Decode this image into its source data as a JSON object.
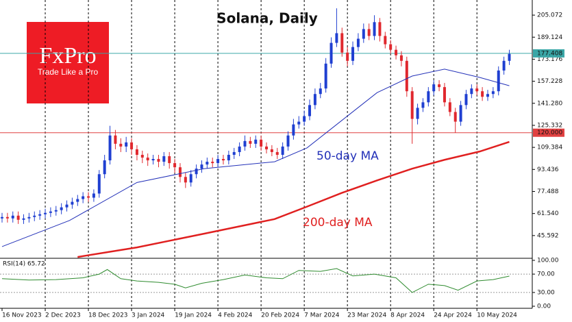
{
  "logo": {
    "name": "FxPro",
    "tagline": "Trade Like a Pro"
  },
  "chart_data": [
    {
      "type": "candlestick",
      "title": "Solana, Daily",
      "x": [
        0,
        2,
        4,
        6,
        8,
        10,
        12,
        14,
        16,
        18,
        20,
        22,
        24,
        26,
        28,
        30,
        32,
        34,
        36,
        38,
        40,
        42,
        44,
        46,
        48,
        50,
        52,
        54,
        56,
        58,
        60,
        62,
        64,
        66,
        68,
        70,
        72,
        74,
        76,
        78,
        80,
        82,
        84,
        86,
        88,
        90,
        92,
        94,
        96,
        98,
        100,
        102,
        104,
        106,
        108,
        110,
        112,
        114,
        116,
        118,
        120,
        122,
        124,
        126,
        128,
        130,
        132,
        134,
        136,
        138,
        140,
        142,
        144,
        146,
        148,
        150,
        152,
        154,
        156,
        158,
        160,
        162,
        164,
        166,
        168,
        170,
        172,
        174,
        176,
        178,
        180,
        182,
        184,
        186,
        188
      ],
      "open": [
        58,
        59,
        58,
        60,
        57,
        58,
        59,
        60,
        61,
        62,
        63,
        64,
        66,
        68,
        70,
        72,
        74,
        73,
        76,
        90,
        100,
        118,
        112,
        110,
        113,
        108,
        104,
        102,
        100,
        101,
        99,
        103,
        98,
        95,
        88,
        84,
        90,
        94,
        97,
        99,
        98,
        101,
        100,
        104,
        106,
        110,
        114,
        112,
        115,
        110,
        108,
        106,
        104,
        110,
        118,
        126,
        128,
        132,
        140,
        148,
        152,
        170,
        185,
        192,
        178,
        172,
        182,
        188,
        195,
        190,
        200,
        190,
        184,
        180,
        176,
        172,
        150,
        130,
        138,
        142,
        150,
        155,
        153,
        142,
        135,
        128,
        140,
        148,
        152,
        150,
        146,
        148,
        150,
        165,
        172
      ],
      "high": [
        62,
        62,
        63,
        63,
        61,
        62,
        63,
        64,
        65,
        66,
        67,
        69,
        71,
        73,
        75,
        77,
        77,
        79,
        93,
        104,
        125,
        122,
        116,
        117,
        116,
        111,
        107,
        105,
        104,
        104,
        106,
        106,
        101,
        98,
        91,
        93,
        97,
        100,
        102,
        102,
        104,
        104,
        107,
        109,
        113,
        118,
        117,
        118,
        118,
        113,
        111,
        109,
        113,
        121,
        130,
        132,
        136,
        144,
        152,
        156,
        174,
        189,
        210,
        196,
        182,
        186,
        192,
        199,
        199,
        205,
        203,
        193,
        187,
        183,
        179,
        175,
        153,
        141,
        145,
        153,
        158,
        158,
        156,
        145,
        138,
        143,
        151,
        155,
        155,
        153,
        151,
        153,
        168,
        175,
        180
      ],
      "low": [
        55,
        55,
        55,
        54,
        54,
        55,
        56,
        57,
        58,
        59,
        60,
        61,
        63,
        65,
        67,
        69,
        70,
        70,
        73,
        87,
        97,
        108,
        106,
        106,
        104,
        100,
        98,
        96,
        97,
        95,
        96,
        94,
        91,
        84,
        80,
        81,
        87,
        91,
        94,
        95,
        95,
        97,
        97,
        101,
        103,
        107,
        109,
        109,
        107,
        105,
        103,
        101,
        101,
        107,
        115,
        123,
        125,
        129,
        137,
        145,
        149,
        167,
        182,
        175,
        168,
        169,
        179,
        185,
        187,
        187,
        186,
        181,
        177,
        173,
        168,
        146,
        112,
        126,
        135,
        139,
        147,
        150,
        139,
        132,
        120,
        125,
        137,
        145,
        147,
        143,
        143,
        145,
        147,
        162,
        169
      ],
      "close": [
        59,
        58,
        60,
        57,
        58,
        59,
        60,
        61,
        62,
        63,
        64,
        66,
        68,
        70,
        72,
        74,
        73,
        76,
        90,
        100,
        118,
        112,
        110,
        113,
        108,
        104,
        102,
        100,
        101,
        99,
        103,
        98,
        95,
        88,
        84,
        90,
        94,
        97,
        99,
        98,
        101,
        100,
        104,
        106,
        110,
        114,
        112,
        115,
        110,
        108,
        106,
        104,
        110,
        118,
        126,
        128,
        132,
        140,
        148,
        152,
        170,
        185,
        192,
        178,
        172,
        182,
        188,
        195,
        190,
        200,
        190,
        184,
        180,
        176,
        172,
        150,
        130,
        138,
        142,
        150,
        155,
        153,
        142,
        135,
        128,
        140,
        148,
        152,
        150,
        146,
        148,
        150,
        165,
        172,
        177
      ],
      "up_color": "#1f3fd1",
      "down_color": "#e0282e",
      "series": [
        {
          "name": "50-day MA",
          "color": "#2230b8",
          "x": [
            0,
            25,
            50,
            75,
            101,
            113,
            126,
            139,
            152,
            164,
            177,
            188
          ],
          "values": [
            37.6,
            56.5,
            84,
            94,
            99,
            109,
            129,
            149,
            161,
            166,
            160,
            154
          ]
        },
        {
          "name": "200-day MA",
          "color": "#e02020",
          "x": [
            28,
            50,
            75,
            101,
            113,
            126,
            139,
            152,
            164,
            177,
            188
          ],
          "values": [
            30.1,
            37,
            47,
            57.5,
            66.5,
            76.5,
            85.5,
            94,
            100.4,
            106.4,
            113.4
          ]
        }
      ],
      "price_line": 177.408,
      "level_line": {
        "value": 120,
        "label": "120.000"
      },
      "xlim": [
        0,
        196
      ],
      "xticks": [
        {
          "value": 0,
          "label": "16 Nov 2023"
        },
        {
          "value": 16,
          "label": "2 Dec 2023"
        },
        {
          "value": 32,
          "label": "18 Dec 2023"
        },
        {
          "value": 48,
          "label": "3 Jan 2024"
        },
        {
          "value": 64,
          "label": "19 Jan 2024"
        },
        {
          "value": 80,
          "label": "4 Feb 2024"
        },
        {
          "value": 96,
          "label": "20 Feb 2024"
        },
        {
          "value": 112,
          "label": "7 Mar 2024"
        },
        {
          "value": 128,
          "label": "23 Mar 2024"
        },
        {
          "value": 144,
          "label": "8 Apr 2024"
        },
        {
          "value": 160,
          "label": "24 Apr 2024"
        },
        {
          "value": 176,
          "label": "10 May 2024"
        }
      ],
      "ylim": [
        30.14,
        213.54
      ],
      "yticks": [
        205.072,
        189.124,
        173.176,
        157.228,
        {
          "value": 141.28,
          "label": "141.280"
        },
        125.332,
        109.384,
        93.436,
        77.488,
        {
          "value": 61.54,
          "label": "61.540"
        },
        45.592
      ]
    },
    {
      "type": "line",
      "title": "RSI(14) 65.72",
      "color": "#2e8b2e",
      "x": [
        0,
        10,
        20,
        30,
        36,
        39,
        44,
        50,
        58,
        64,
        68,
        74,
        82,
        90,
        98,
        104,
        110,
        118,
        124,
        130,
        138,
        146,
        152,
        158,
        164,
        169,
        176,
        182,
        188
      ],
      "values": [
        60,
        57,
        58,
        62,
        70,
        80,
        60,
        55,
        52,
        48,
        40,
        50,
        58,
        68,
        62,
        60,
        78,
        76,
        82,
        66,
        70,
        62,
        30,
        48,
        45,
        35,
        55,
        58,
        65.72
      ],
      "ylim": [
        0,
        100
      ],
      "yticks": [
        {
          "value": 100,
          "label": "100.00"
        },
        {
          "value": 70,
          "label": "70.00"
        },
        {
          "value": 30,
          "label": "30.00"
        },
        {
          "value": 0,
          "label": "0.00"
        }
      ]
    }
  ]
}
